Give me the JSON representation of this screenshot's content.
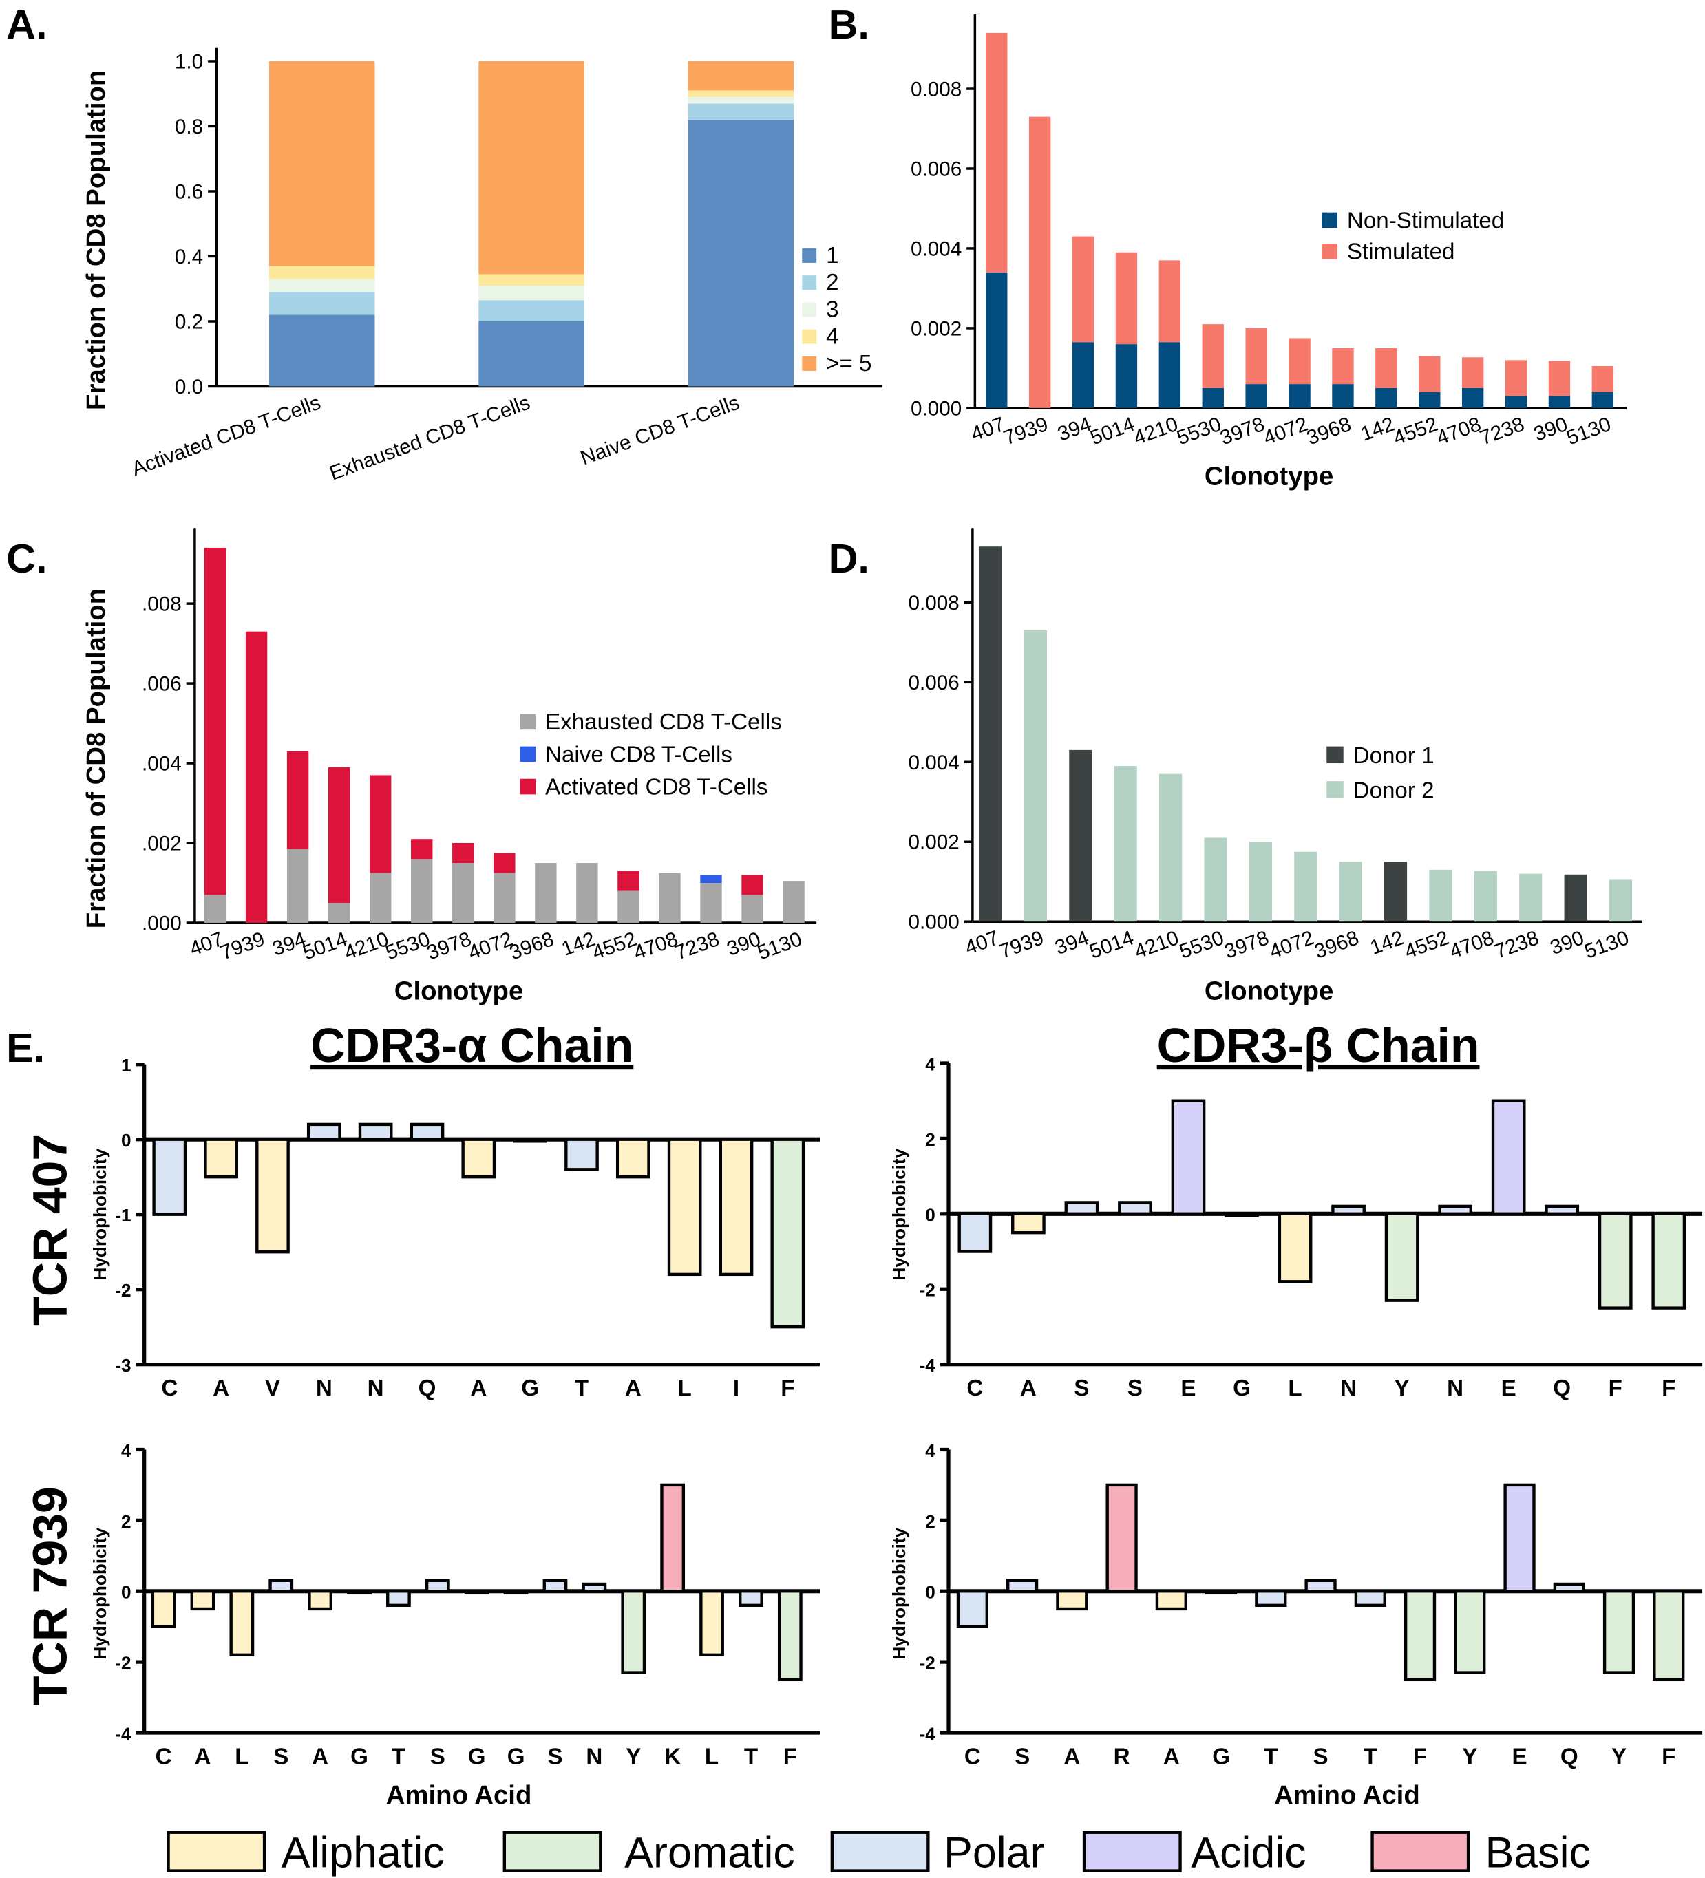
{
  "panel_labels": [
    "A.",
    "B.",
    "C.",
    "D.",
    "E."
  ],
  "colors": {
    "a_1": "#5b8bc1",
    "a_2": "#a6d3e6",
    "a_3": "#e9f5e6",
    "a_4": "#fce79a",
    "a_5": "#fba55c",
    "non_stimulated": "#024c80",
    "stimulated": "#f7796b",
    "exhausted": "#a6a6a6",
    "naive": "#2f5fe8",
    "activated": "#dc143c",
    "donor1": "#3d4342",
    "donor2": "#b3d2c3",
    "aliphatic": "#fff2c8",
    "aromatic": "#ddefd9",
    "polar": "#d9e4f4",
    "acidic": "#d5d1fb",
    "basic": "#f7aebb"
  },
  "chart_data": [
    {
      "id": "A",
      "type": "bar",
      "stacked": true,
      "categories": [
        "Activated CD8 T-Cells",
        "Exhausted CD8 T-Cells",
        "Naive CD8 T-Cells"
      ],
      "ylabel": "Fraction of CD8 Population",
      "xlabel": "",
      "ylim": [
        0,
        1.0
      ],
      "yticks": [
        "0.0",
        "0.2",
        "0.4",
        "0.6",
        "0.8",
        "1.0"
      ],
      "legend_position": "right",
      "series": [
        {
          "name": "1",
          "values": [
            0.22,
            0.2,
            0.82
          ]
        },
        {
          "name": "2",
          "values": [
            0.07,
            0.065,
            0.05
          ]
        },
        {
          "name": "3",
          "values": [
            0.04,
            0.045,
            0.02
          ]
        },
        {
          "name": "4",
          "values": [
            0.04,
            0.035,
            0.02
          ]
        },
        {
          "name": ">= 5",
          "values": [
            0.63,
            0.655,
            0.09
          ]
        }
      ]
    },
    {
      "id": "B",
      "type": "bar",
      "stacked": true,
      "categories": [
        "407",
        "7939",
        "394",
        "5014",
        "4210",
        "5530",
        "3978",
        "4072",
        "3968",
        "142",
        "4552",
        "4708",
        "7238",
        "390",
        "5130"
      ],
      "xlabel": "Clonotype",
      "ylabel": "",
      "ylim": [
        0,
        0.0095
      ],
      "yticks": [
        "0.000",
        "0.002",
        "0.004",
        "0.006",
        "0.008"
      ],
      "legend_position": "center-right",
      "series": [
        {
          "name": "Non-Stimulated",
          "values": [
            0.0034,
            0,
            0.00165,
            0.0016,
            0.00165,
            0.0005,
            0.0006,
            0.0006,
            0.0006,
            0.0005,
            0.0004,
            0.0005,
            0.0003,
            0.0003,
            0.0004
          ]
        },
        {
          "name": "Stimulated",
          "values": [
            0.006,
            0.0073,
            0.00265,
            0.0023,
            0.00205,
            0.0016,
            0.0014,
            0.00115,
            0.0009,
            0.001,
            0.0009,
            0.00077,
            0.0009,
            0.00088,
            0.00065
          ]
        }
      ]
    },
    {
      "id": "C",
      "type": "bar",
      "stacked": true,
      "categories": [
        "407",
        "7939",
        "394",
        "5014",
        "4210",
        "5530",
        "3978",
        "4072",
        "3968",
        "142",
        "4552",
        "4708",
        "7238",
        "390",
        "5130"
      ],
      "xlabel": "Clonotype",
      "ylabel": "Fraction of CD8 Population",
      "ylim": [
        0,
        0.0095
      ],
      "yticks": [
        ".000",
        ".002",
        ".004",
        ".006",
        ".008"
      ],
      "legend_position": "center-right",
      "series": [
        {
          "name": "Exhausted CD8 T-Cells",
          "values": [
            0.0007,
            0,
            0.00185,
            0.0005,
            0.00125,
            0.0016,
            0.0015,
            0.00125,
            0.0015,
            0.0015,
            0.0008,
            0.00125,
            0.001,
            0.0007,
            0.00105
          ]
        },
        {
          "name": "Naive CD8 T-Cells",
          "values": [
            0,
            0,
            0,
            0,
            0,
            0,
            0,
            0,
            0,
            0,
            0,
            0,
            0.0002,
            0,
            0
          ]
        },
        {
          "name": "Activated CD8 T-Cells",
          "values": [
            0.0087,
            0.0073,
            0.00245,
            0.0034,
            0.00245,
            0.0005,
            0.0005,
            0.0005,
            0,
            0,
            0.0005,
            0,
            0,
            0.0005,
            0
          ]
        }
      ]
    },
    {
      "id": "D",
      "type": "bar",
      "categories": [
        "407",
        "7939",
        "394",
        "5014",
        "4210",
        "5530",
        "3978",
        "4072",
        "3968",
        "142",
        "4552",
        "4708",
        "7238",
        "390",
        "5130"
      ],
      "xlabel": "Clonotype",
      "ylabel": "",
      "ylim": [
        0,
        0.0095
      ],
      "yticks": [
        "0.000",
        "0.002",
        "0.004",
        "0.006",
        "0.008"
      ],
      "legend_position": "center-right",
      "values": [
        0.0094,
        0.0073,
        0.0043,
        0.0039,
        0.0037,
        0.0021,
        0.002,
        0.00175,
        0.0015,
        0.0015,
        0.0013,
        0.00127,
        0.0012,
        0.00118,
        0.00105
      ],
      "groups": [
        "Donor 1",
        "Donor 2",
        "Donor 1",
        "Donor 2",
        "Donor 2",
        "Donor 2",
        "Donor 2",
        "Donor 2",
        "Donor 2",
        "Donor 1",
        "Donor 2",
        "Donor 2",
        "Donor 2",
        "Donor 1",
        "Donor 2"
      ],
      "legend": [
        "Donor 1",
        "Donor 2"
      ]
    },
    {
      "id": "E-alpha-407",
      "type": "bar",
      "title": "CDR3-α Chain",
      "row_label": "TCR 407",
      "ylabel": "Hydrophobicity",
      "xlabel": "",
      "ylim": [
        -3,
        1
      ],
      "yticks": [
        "1",
        "0",
        "-1",
        "-2",
        "-3"
      ],
      "categories": [
        "C",
        "A",
        "V",
        "N",
        "N",
        "Q",
        "A",
        "G",
        "T",
        "A",
        "L",
        "I",
        "F"
      ],
      "values": [
        -1,
        -0.5,
        -1.5,
        0.2,
        0.2,
        0.2,
        -0.5,
        0,
        -0.4,
        -0.5,
        -1.8,
        -1.8,
        -2.5
      ],
      "classes": [
        "polar",
        "aliphatic",
        "aliphatic",
        "polar",
        "polar",
        "polar",
        "aliphatic",
        "aliphatic",
        "polar",
        "aliphatic",
        "aliphatic",
        "aliphatic",
        "aromatic"
      ]
    },
    {
      "id": "E-beta-407",
      "type": "bar",
      "title": "CDR3-β Chain",
      "row_label": "TCR 407",
      "ylabel": "Hydrophobicity",
      "xlabel": "",
      "ylim": [
        -4,
        4
      ],
      "yticks": [
        "4",
        "2",
        "0",
        "-2",
        "-4"
      ],
      "categories": [
        "C",
        "A",
        "S",
        "S",
        "E",
        "G",
        "L",
        "N",
        "Y",
        "N",
        "E",
        "Q",
        "F",
        "F"
      ],
      "values": [
        -1,
        -0.5,
        0.3,
        0.3,
        3,
        0,
        -1.8,
        0.2,
        -2.3,
        0.2,
        3,
        0.2,
        -2.5,
        -2.5
      ],
      "classes": [
        "polar",
        "aliphatic",
        "polar",
        "polar",
        "acidic",
        "aliphatic",
        "aliphatic",
        "polar",
        "aromatic",
        "polar",
        "acidic",
        "polar",
        "aromatic",
        "aromatic"
      ]
    },
    {
      "id": "E-alpha-7939",
      "type": "bar",
      "row_label": "TCR 7939",
      "ylabel": "Hydrophobicity",
      "xlabel": "Amino Acid",
      "ylim": [
        -4,
        4
      ],
      "yticks": [
        "4",
        "2",
        "0",
        "-2",
        "-4"
      ],
      "categories": [
        "C",
        "A",
        "L",
        "S",
        "A",
        "G",
        "T",
        "S",
        "G",
        "G",
        "S",
        "N",
        "Y",
        "K",
        "L",
        "T",
        "F"
      ],
      "values": [
        -1,
        -0.5,
        -1.8,
        0.3,
        -0.5,
        0,
        -0.4,
        0.3,
        0,
        0,
        0.3,
        0.2,
        -2.3,
        3,
        -1.8,
        -0.4,
        -2.5
      ],
      "classes": [
        "aliphatic",
        "aliphatic",
        "aliphatic",
        "polar",
        "aliphatic",
        "aliphatic",
        "polar",
        "polar",
        "aliphatic",
        "aliphatic",
        "polar",
        "polar",
        "aromatic",
        "basic",
        "aliphatic",
        "polar",
        "aromatic"
      ]
    },
    {
      "id": "E-beta-7939",
      "type": "bar",
      "row_label": "TCR 7939",
      "ylabel": "Hydrophobicity",
      "xlabel": "Amino Acid",
      "ylim": [
        -4,
        4
      ],
      "yticks": [
        "4",
        "2",
        "0",
        "-2",
        "-4"
      ],
      "categories": [
        "C",
        "S",
        "A",
        "R",
        "A",
        "G",
        "T",
        "S",
        "T",
        "F",
        "Y",
        "E",
        "Q",
        "Y",
        "F"
      ],
      "values": [
        -1,
        0.3,
        -0.5,
        3,
        -0.5,
        0,
        -0.4,
        0.3,
        -0.4,
        -2.5,
        -2.3,
        3,
        0.2,
        -2.3,
        -2.5
      ],
      "classes": [
        "polar",
        "polar",
        "aliphatic",
        "basic",
        "aliphatic",
        "aliphatic",
        "polar",
        "polar",
        "polar",
        "aromatic",
        "aromatic",
        "acidic",
        "polar",
        "aromatic",
        "aromatic"
      ]
    }
  ],
  "e_legend": [
    {
      "key": "aliphatic",
      "label": "Aliphatic"
    },
    {
      "key": "aromatic",
      "label": "Aromatic"
    },
    {
      "key": "polar",
      "label": "Polar"
    },
    {
      "key": "acidic",
      "label": "Acidic"
    },
    {
      "key": "basic",
      "label": "Basic"
    }
  ]
}
